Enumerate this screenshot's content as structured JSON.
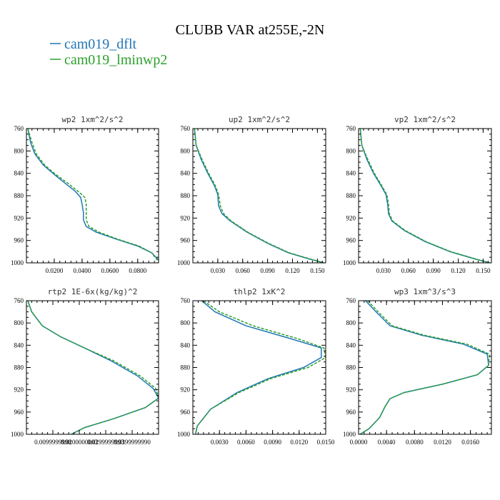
{
  "figure": {
    "title": "CLUBB VAR at255E,-2N",
    "legend": [
      {
        "label": "cam019_dflt",
        "color": "#1f77b4",
        "dash": "solid"
      },
      {
        "label": "cam019_lminwp2",
        "color": "#2ca02c",
        "dash": "dashed"
      }
    ]
  },
  "chart_data": [
    {
      "type": "line",
      "title": "wp2  1xm^2/s^2",
      "xlim": [
        0,
        0.095
      ],
      "xticks": [
        0.02,
        0.04,
        0.06,
        0.08
      ],
      "xticklabels": [
        "0.0200",
        "0.0400",
        "0.0600",
        "0.0800"
      ],
      "ylim": [
        760,
        1000
      ],
      "yticks": [
        760,
        800,
        840,
        880,
        920,
        960,
        1000
      ],
      "series": [
        {
          "name": "cam019_dflt",
          "x": [
            0.001,
            0.003,
            0.006,
            0.012,
            0.02,
            0.028,
            0.035,
            0.039,
            0.04,
            0.041,
            0.041,
            0.043,
            0.05,
            0.065,
            0.08,
            0.09,
            0.095
          ],
          "y": [
            760,
            785,
            805,
            825,
            842,
            858,
            872,
            883,
            895,
            910,
            923,
            935,
            945,
            958,
            970,
            982,
            995
          ]
        },
        {
          "name": "cam019_lminwp2",
          "x": [
            0.001,
            0.004,
            0.007,
            0.013,
            0.021,
            0.03,
            0.037,
            0.042,
            0.043,
            0.043,
            0.043,
            0.045,
            0.052,
            0.066,
            0.081,
            0.09,
            0.094
          ],
          "y": [
            760,
            785,
            805,
            825,
            842,
            858,
            872,
            883,
            895,
            910,
            923,
            935,
            945,
            958,
            970,
            982,
            995
          ]
        }
      ]
    },
    {
      "type": "line",
      "title": "up2  1xm^2/s^2",
      "xlim": [
        0,
        0.16
      ],
      "xticks": [
        0.03,
        0.06,
        0.09,
        0.12,
        0.15
      ],
      "xticklabels": [
        "0.030",
        "0.060",
        "0.090",
        "0.120",
        "0.150"
      ],
      "ylim": [
        760,
        1000
      ],
      "yticks": [
        760,
        800,
        840,
        880,
        920,
        960,
        1000
      ],
      "series": [
        {
          "name": "cam019_dflt",
          "x": [
            0.002,
            0.004,
            0.01,
            0.018,
            0.026,
            0.03,
            0.031,
            0.035,
            0.045,
            0.065,
            0.09,
            0.115,
            0.14,
            0.158
          ],
          "y": [
            760,
            790,
            815,
            840,
            862,
            878,
            898,
            912,
            925,
            945,
            965,
            982,
            993,
            1000
          ]
        },
        {
          "name": "cam019_lminwp2",
          "x": [
            0.002,
            0.004,
            0.011,
            0.019,
            0.027,
            0.031,
            0.033,
            0.037,
            0.046,
            0.066,
            0.091,
            0.116,
            0.141,
            0.158
          ],
          "y": [
            760,
            790,
            815,
            840,
            862,
            878,
            898,
            912,
            925,
            945,
            965,
            982,
            993,
            1000
          ]
        }
      ]
    },
    {
      "type": "line",
      "title": "vp2  1xm^2/s^2",
      "xlim": [
        0,
        0.16
      ],
      "xticks": [
        0.03,
        0.06,
        0.09,
        0.12,
        0.15
      ],
      "xticklabels": [
        "0.030",
        "0.060",
        "0.090",
        "0.120",
        "0.150"
      ],
      "ylim": [
        760,
        1000
      ],
      "yticks": [
        760,
        800,
        840,
        880,
        920,
        960,
        1000
      ],
      "series": [
        {
          "name": "cam019_dflt",
          "x": [
            0.002,
            0.004,
            0.01,
            0.018,
            0.027,
            0.033,
            0.035,
            0.036,
            0.04,
            0.055,
            0.08,
            0.11,
            0.14,
            0.158
          ],
          "y": [
            760,
            790,
            815,
            840,
            862,
            878,
            895,
            912,
            925,
            942,
            962,
            980,
            993,
            1000
          ]
        },
        {
          "name": "cam019_lminwp2",
          "x": [
            0.002,
            0.004,
            0.011,
            0.019,
            0.028,
            0.034,
            0.036,
            0.037,
            0.041,
            0.056,
            0.081,
            0.111,
            0.141,
            0.158
          ],
          "y": [
            760,
            790,
            815,
            840,
            862,
            878,
            895,
            912,
            925,
            942,
            962,
            980,
            993,
            1000
          ]
        }
      ]
    },
    {
      "type": "line",
      "title": "rtp2  1E-6x(kg/kg)^2",
      "xlim": [
        0,
        0.05
      ],
      "xticks": [
        0.01,
        0.02,
        0.03,
        0.04
      ],
      "xticklabels": [
        "0.0099999998",
        "0.0200000003",
        "0.0299999993",
        "0.0399999990"
      ],
      "ylim": [
        760,
        1000
      ],
      "yticks": [
        760,
        800,
        840,
        880,
        920,
        960,
        1000
      ],
      "series": [
        {
          "name": "cam019_dflt",
          "x": [
            0.0005,
            0.002,
            0.006,
            0.013,
            0.022,
            0.032,
            0.042,
            0.048,
            0.05,
            0.045,
            0.033,
            0.022,
            0.017
          ],
          "y": [
            760,
            780,
            805,
            825,
            845,
            868,
            895,
            918,
            935,
            952,
            972,
            988,
            1000
          ]
        },
        {
          "name": "cam019_lminwp2",
          "x": [
            0.0005,
            0.002,
            0.006,
            0.013,
            0.022,
            0.033,
            0.043,
            0.049,
            0.05,
            0.045,
            0.033,
            0.022,
            0.017
          ],
          "y": [
            760,
            780,
            805,
            825,
            845,
            868,
            895,
            918,
            935,
            952,
            972,
            988,
            1000
          ]
        }
      ]
    },
    {
      "type": "line",
      "title": "thlp2  1xK^2",
      "xlim": [
        0,
        0.015
      ],
      "xticks": [
        0.003,
        0.006,
        0.009,
        0.012,
        0.015
      ],
      "xticklabels": [
        "0.0030",
        "0.0060",
        "0.0090",
        "0.0120",
        "0.0150"
      ],
      "ylim": [
        760,
        1000
      ],
      "yticks": [
        760,
        800,
        840,
        880,
        920,
        960,
        1000
      ],
      "series": [
        {
          "name": "cam019_dflt",
          "x": [
            0.001,
            0.0025,
            0.006,
            0.011,
            0.0145,
            0.0145,
            0.0125,
            0.0085,
            0.005,
            0.002,
            0.0005,
            0.0003
          ],
          "y": [
            760,
            780,
            805,
            828,
            845,
            862,
            880,
            900,
            925,
            955,
            985,
            1000
          ]
        },
        {
          "name": "cam019_lminwp2",
          "x": [
            0.0012,
            0.003,
            0.0068,
            0.0118,
            0.0148,
            0.015,
            0.013,
            0.0088,
            0.0052,
            0.002,
            0.0005,
            0.0003
          ],
          "y": [
            760,
            780,
            805,
            828,
            845,
            862,
            880,
            900,
            925,
            955,
            985,
            1000
          ]
        }
      ]
    },
    {
      "type": "line",
      "title": "wp3  1xm^3/s^3",
      "xlim": [
        0,
        0.019
      ],
      "xticks": [
        0.0,
        0.004,
        0.008,
        0.012,
        0.016
      ],
      "xticklabels": [
        "0.0000",
        "0.0040",
        "0.0080",
        "0.0120",
        "0.0160"
      ],
      "ylim": [
        760,
        1000
      ],
      "yticks": [
        760,
        800,
        840,
        880,
        920,
        960,
        1000
      ],
      "series": [
        {
          "name": "cam019_dflt",
          "x": [
            0.001,
            0.0025,
            0.0045,
            0.009,
            0.015,
            0.0184,
            0.0186,
            0.017,
            0.012,
            0.0065,
            0.0045,
            0.0038,
            0.003,
            0.0015,
            0.0002
          ],
          "y": [
            760,
            780,
            805,
            822,
            838,
            856,
            876,
            893,
            910,
            925,
            936,
            950,
            970,
            990,
            1000
          ]
        },
        {
          "name": "cam019_lminwp2",
          "x": [
            0.0013,
            0.0028,
            0.0048,
            0.0094,
            0.0155,
            0.0187,
            0.0186,
            0.017,
            0.012,
            0.0065,
            0.0045,
            0.0038,
            0.003,
            0.0015,
            0.0002
          ],
          "y": [
            760,
            780,
            805,
            822,
            838,
            856,
            876,
            893,
            910,
            925,
            936,
            950,
            970,
            990,
            1000
          ]
        }
      ]
    }
  ]
}
